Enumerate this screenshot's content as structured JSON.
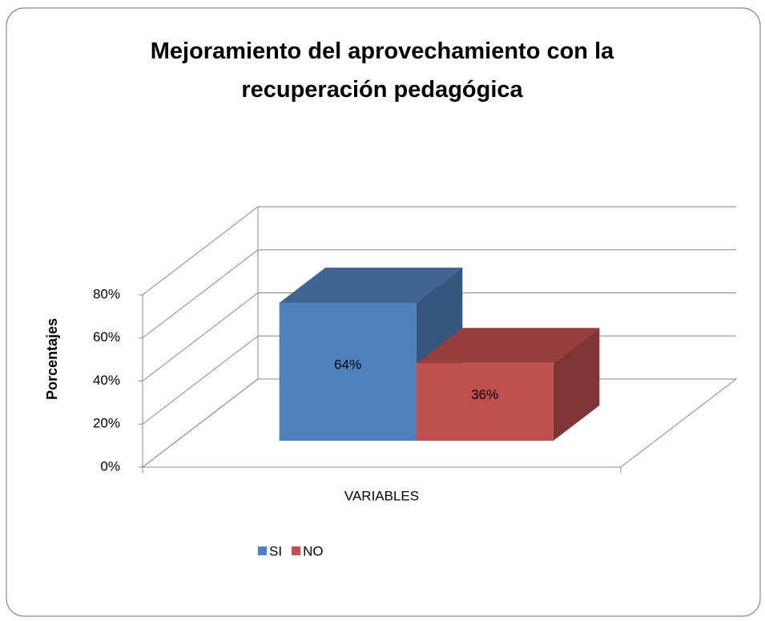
{
  "chart_data": {
    "type": "bar3d",
    "title": "Mejoramiento del aprovechamiento con la recuperación pedagógica",
    "y_label": "Porcentajes",
    "categories": [
      "VARIABLES"
    ],
    "series": [
      {
        "name": "SI",
        "color": "#4f81bd",
        "values": [
          64
        ],
        "value_labels": [
          "64%"
        ]
      },
      {
        "name": "NO",
        "color": "#c0504d",
        "values": [
          36
        ],
        "value_labels": [
          "36%"
        ]
      }
    ],
    "ylim": [
      0,
      80
    ],
    "yticks": [
      {
        "value": 0,
        "label": "0%"
      },
      {
        "value": 20,
        "label": "20%"
      },
      {
        "value": 40,
        "label": "40%"
      },
      {
        "value": 60,
        "label": "60%"
      },
      {
        "value": 80,
        "label": "80%"
      }
    ],
    "grid": true,
    "legend": "bottom"
  }
}
